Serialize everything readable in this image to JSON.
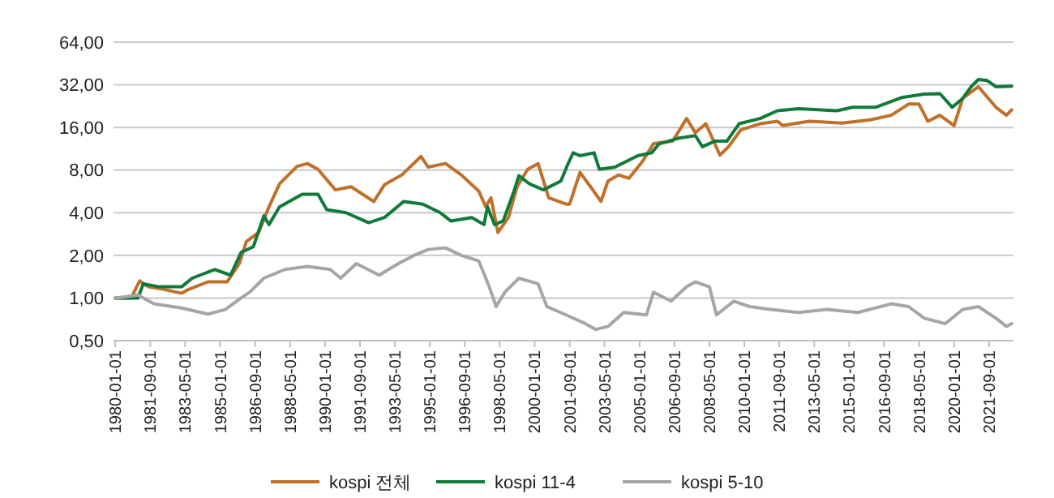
{
  "chart_data": {
    "type": "line",
    "log": "y",
    "grid": "y",
    "legend": "bottom",
    "line_style": "solid",
    "marker": "none",
    "xlim": [
      "1979-12",
      "2022-11"
    ],
    "xticks": [
      {
        "value": "1980-01",
        "label": "1980-01-01"
      },
      {
        "value": "1981-09",
        "label": "1981-09-01"
      },
      {
        "value": "1983-05",
        "label": "1983-05-01"
      },
      {
        "value": "1985-01",
        "label": "1985-01-01"
      },
      {
        "value": "1986-09",
        "label": "1986-09-01"
      },
      {
        "value": "1988-05",
        "label": "1988-05-01"
      },
      {
        "value": "1990-01",
        "label": "1990-01-01"
      },
      {
        "value": "1991-09",
        "label": "1991-09-01"
      },
      {
        "value": "1993-05",
        "label": "1993-05-01"
      },
      {
        "value": "1995-01",
        "label": "1995-01-01"
      },
      {
        "value": "1996-09",
        "label": "1996-09-01"
      },
      {
        "value": "1998-05",
        "label": "1998-05-01"
      },
      {
        "value": "2000-01",
        "label": "2000-01-01"
      },
      {
        "value": "2001-09",
        "label": "2001-09-01"
      },
      {
        "value": "2003-05",
        "label": "2003-05-01"
      },
      {
        "value": "2005-01",
        "label": "2005-01-01"
      },
      {
        "value": "2006-09",
        "label": "2006-09-01"
      },
      {
        "value": "2008-05",
        "label": "2008-05-01"
      },
      {
        "value": "2010-01",
        "label": "2010-01-01"
      },
      {
        "value": "2011-09",
        "label": "2011-09-01"
      },
      {
        "value": "2013-05",
        "label": "2013-05-01"
      },
      {
        "value": "2015-01",
        "label": "2015-01-01"
      },
      {
        "value": "2016-09",
        "label": "2016-09-01"
      },
      {
        "value": "2018-05",
        "label": "2018-05-01"
      },
      {
        "value": "2020-01",
        "label": "2020-01-01"
      },
      {
        "value": "2021-09",
        "label": "2021-09-01"
      }
    ],
    "ylim": [
      0.5,
      64
    ],
    "yticks": [
      {
        "value": 0.5,
        "label": "0,50"
      },
      {
        "value": 1,
        "label": "1,00"
      },
      {
        "value": 2,
        "label": "2,00"
      },
      {
        "value": 4,
        "label": "4,00"
      },
      {
        "value": 8,
        "label": "8,00"
      },
      {
        "value": 16,
        "label": "16,00"
      },
      {
        "value": 32,
        "label": "32,00"
      },
      {
        "value": 64,
        "label": "64,00"
      }
    ],
    "series": [
      {
        "name": "kospi 전체",
        "color": "#c0702a",
        "x": [
          "1980-01",
          "1980-10",
          "1981-03",
          "1981-08",
          "1982-05",
          "1983-03",
          "1983-07",
          "1984-06",
          "1985-05",
          "1985-12",
          "1986-04",
          "1986-11",
          "1987-05",
          "1987-11",
          "1988-09",
          "1989-03",
          "1989-09",
          "1990-07",
          "1991-04",
          "1992-05",
          "1992-11",
          "1993-09",
          "1994-08",
          "1994-12",
          "1995-10",
          "1996-07",
          "1997-05",
          "1997-09",
          "1997-12",
          "1998-04",
          "1998-10",
          "1999-03",
          "1999-09",
          "2000-03",
          "2000-09",
          "2001-07",
          "2001-09",
          "2002-03",
          "2002-09",
          "2003-03",
          "2003-07",
          "2004-01",
          "2004-07",
          "2005-03",
          "2005-09",
          "2006-08",
          "2007-04",
          "2007-09",
          "2008-03",
          "2008-11",
          "2009-04",
          "2009-11",
          "2010-10",
          "2011-08",
          "2011-11",
          "2013-02",
          "2014-09",
          "2016-01",
          "2017-01",
          "2017-11",
          "2018-05",
          "2018-10",
          "2019-05",
          "2020-01",
          "2020-06",
          "2021-03",
          "2022-01",
          "2022-07",
          "2022-10"
        ],
        "values": [
          1.0,
          1.0,
          1.32,
          1.2,
          1.15,
          1.08,
          1.15,
          1.3,
          1.3,
          1.75,
          2.5,
          2.9,
          4.4,
          6.4,
          8.5,
          8.9,
          8.1,
          5.8,
          6.1,
          4.8,
          6.3,
          7.4,
          10.0,
          8.4,
          8.9,
          7.4,
          5.7,
          4.4,
          5.1,
          2.9,
          3.7,
          6.1,
          8.1,
          8.9,
          5.1,
          4.6,
          4.6,
          7.7,
          6.1,
          4.8,
          6.7,
          7.4,
          7.0,
          9.3,
          12.3,
          12.8,
          18.5,
          14.7,
          17,
          10.2,
          11.7,
          15.4,
          17,
          17.7,
          16.5,
          17.7,
          17.2,
          18.1,
          19.5,
          23.4,
          23.4,
          17.7,
          19.5,
          16.5,
          25.7,
          31,
          22.2,
          19.5,
          21.3
        ]
      },
      {
        "name": "kospi 11-4",
        "color": "#107a3a",
        "x": [
          "1980-01",
          "1981-02",
          "1981-05",
          "1982-02",
          "1983-03",
          "1983-09",
          "1984-10",
          "1985-07",
          "1986-01",
          "1986-08",
          "1987-02",
          "1987-05",
          "1987-11",
          "1988-12",
          "1989-09",
          "1990-02",
          "1991-01",
          "1992-02",
          "1992-11",
          "1993-10",
          "1994-09",
          "1995-07",
          "1996-01",
          "1997-01",
          "1997-08",
          "1997-10",
          "1998-02",
          "1998-07",
          "1999-01",
          "1999-04",
          "1999-10",
          "2000-06",
          "2001-04",
          "2001-08",
          "2001-11",
          "2002-03",
          "2002-11",
          "2003-02",
          "2003-11",
          "2004-12",
          "2005-08",
          "2005-12",
          "2006-11",
          "2007-09",
          "2008-01",
          "2008-08",
          "2009-03",
          "2009-10",
          "2010-10",
          "2011-08",
          "2012-08",
          "2014-06",
          "2015-03",
          "2016-04",
          "2017-07",
          "2018-08",
          "2019-05",
          "2019-12",
          "2020-06",
          "2020-11",
          "2021-03",
          "2021-08",
          "2022-01",
          "2022-10"
        ],
        "values": [
          1.0,
          1.0,
          1.26,
          1.2,
          1.2,
          1.38,
          1.59,
          1.45,
          2.1,
          2.3,
          3.8,
          3.3,
          4.4,
          5.4,
          5.4,
          4.2,
          4.0,
          3.4,
          3.7,
          4.8,
          4.6,
          4.0,
          3.5,
          3.7,
          3.3,
          4.4,
          3.3,
          3.5,
          5.6,
          7.3,
          6.4,
          5.8,
          6.7,
          8.8,
          10.6,
          10.1,
          10.6,
          8.1,
          8.4,
          10.1,
          10.6,
          12.2,
          13.4,
          14.0,
          11.7,
          12.8,
          12.8,
          17,
          18.5,
          21,
          21.7,
          21,
          22.2,
          22.2,
          26,
          27.5,
          27.7,
          22.2,
          25.7,
          31.3,
          34.9,
          34.3,
          31,
          31.3
        ]
      },
      {
        "name": "kospi 5-10",
        "color": "#a6a6a6",
        "x": [
          "1980-01",
          "1981-02",
          "1981-11",
          "1983-03",
          "1984-06",
          "1985-04",
          "1986-01",
          "1986-06",
          "1987-02",
          "1988-02",
          "1989-03",
          "1990-04",
          "1990-10",
          "1991-07",
          "1992-08",
          "1993-07",
          "1994-04",
          "1994-12",
          "1995-10",
          "1996-07",
          "1997-05",
          "1997-11",
          "1998-03",
          "1998-08",
          "1999-04",
          "2000-03",
          "2000-08",
          "2001-07",
          "2002-06",
          "2002-12",
          "2003-07",
          "2004-04",
          "2005-05",
          "2005-09",
          "2006-07",
          "2007-04",
          "2007-09",
          "2008-05",
          "2008-09",
          "2009-07",
          "2010-04",
          "2011-04",
          "2012-08",
          "2013-12",
          "2015-06",
          "2017-01",
          "2017-11",
          "2018-08",
          "2019-08",
          "2020-06",
          "2021-03",
          "2022-01",
          "2022-07",
          "2022-10"
        ],
        "values": [
          1.0,
          1.05,
          0.91,
          0.85,
          0.77,
          0.83,
          1.0,
          1.1,
          1.38,
          1.59,
          1.67,
          1.59,
          1.38,
          1.75,
          1.45,
          1.75,
          2.0,
          2.2,
          2.26,
          2.0,
          1.83,
          1.2,
          0.87,
          1.1,
          1.38,
          1.26,
          0.87,
          0.76,
          0.66,
          0.6,
          0.63,
          0.79,
          0.76,
          1.1,
          0.95,
          1.2,
          1.3,
          1.2,
          0.76,
          0.95,
          0.87,
          0.83,
          0.79,
          0.83,
          0.79,
          0.91,
          0.87,
          0.72,
          0.66,
          0.83,
          0.87,
          0.72,
          0.63,
          0.66
        ]
      }
    ]
  }
}
